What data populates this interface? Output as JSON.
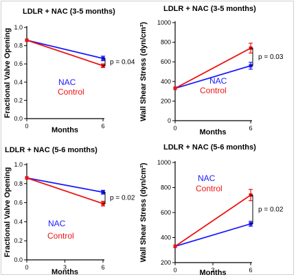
{
  "colors": {
    "nac": "#1a1aff",
    "control": "#ee1111"
  },
  "chart_data": [
    {
      "type": "line",
      "title": "LDLR + NAC (3-5 months)",
      "xlabel": "Months",
      "ylabel": "Fractional Valve Opening",
      "x_ticks": [
        0,
        6
      ],
      "y_ticks": [
        "0.0",
        "0.2",
        "0.4",
        "0.6",
        "0.8",
        "1.0"
      ],
      "xlim": [
        0,
        6
      ],
      "ylim": [
        0,
        1.0
      ],
      "series": [
        {
          "name": "NAC",
          "color": "#1a1aff",
          "x": [
            0,
            6
          ],
          "y": [
            0.86,
            0.66
          ],
          "err": [
            0,
            0.025
          ]
        },
        {
          "name": "Control",
          "color": "#ee1111",
          "x": [
            0,
            6
          ],
          "y": [
            0.86,
            0.58
          ],
          "err": [
            0,
            0.02
          ]
        }
      ],
      "annotation": "p = 0.04"
    },
    {
      "type": "line",
      "title": "LDLR + NAC (3-5 months)",
      "xlabel": "Months",
      "ylabel": "Wall Shear Stress (dyn/cm²)",
      "x_ticks": [
        0,
        6
      ],
      "y_ticks": [
        "0",
        "200",
        "400",
        "600",
        "800",
        "1000"
      ],
      "xlim": [
        0,
        6
      ],
      "ylim": [
        0,
        1000
      ],
      "series": [
        {
          "name": "NAC",
          "color": "#1a1aff",
          "x": [
            0,
            6
          ],
          "y": [
            330,
            560
          ],
          "err": [
            0,
            35
          ]
        },
        {
          "name": "Control",
          "color": "#ee1111",
          "x": [
            0,
            6
          ],
          "y": [
            330,
            740
          ],
          "err": [
            0,
            50
          ]
        }
      ],
      "annotation": "p = 0.03"
    },
    {
      "type": "line",
      "title": "LDLR + NAC (5-6 months)",
      "xlabel": "Months",
      "ylabel": "Fractional Valve Opening",
      "x_ticks": [
        0,
        3,
        6
      ],
      "y_ticks": [
        "0.0",
        "0.2",
        "0.4",
        "0.6",
        "0.8",
        "1.0"
      ],
      "xlim": [
        0,
        6
      ],
      "ylim": [
        0,
        1.0
      ],
      "series": [
        {
          "name": "NAC",
          "color": "#1a1aff",
          "x": [
            0,
            6
          ],
          "y": [
            0.86,
            0.71
          ],
          "err": [
            0,
            0.02
          ]
        },
        {
          "name": "Control",
          "color": "#ee1111",
          "x": [
            0,
            6
          ],
          "y": [
            0.86,
            0.59
          ],
          "err": [
            0,
            0.025
          ]
        }
      ],
      "annotation": "p = 0.02"
    },
    {
      "type": "line",
      "title": "LDLR + NAC (5-6 months)",
      "xlabel": "Months",
      "ylabel": "Wall Shear Stress (dyn/cm²)",
      "x_ticks": [
        0,
        3,
        6
      ],
      "y_ticks": [
        "200",
        "400",
        "600",
        "800",
        "1000"
      ],
      "xlim": [
        0,
        6
      ],
      "ylim": [
        200,
        1000
      ],
      "series": [
        {
          "name": "NAC",
          "color": "#1a1aff",
          "x": [
            0,
            6
          ],
          "y": [
            330,
            510
          ],
          "err": [
            0,
            20
          ]
        },
        {
          "name": "Control",
          "color": "#ee1111",
          "x": [
            0,
            6
          ],
          "y": [
            330,
            740
          ],
          "err": [
            0,
            45
          ]
        }
      ],
      "annotation": "p = 0.02"
    }
  ]
}
